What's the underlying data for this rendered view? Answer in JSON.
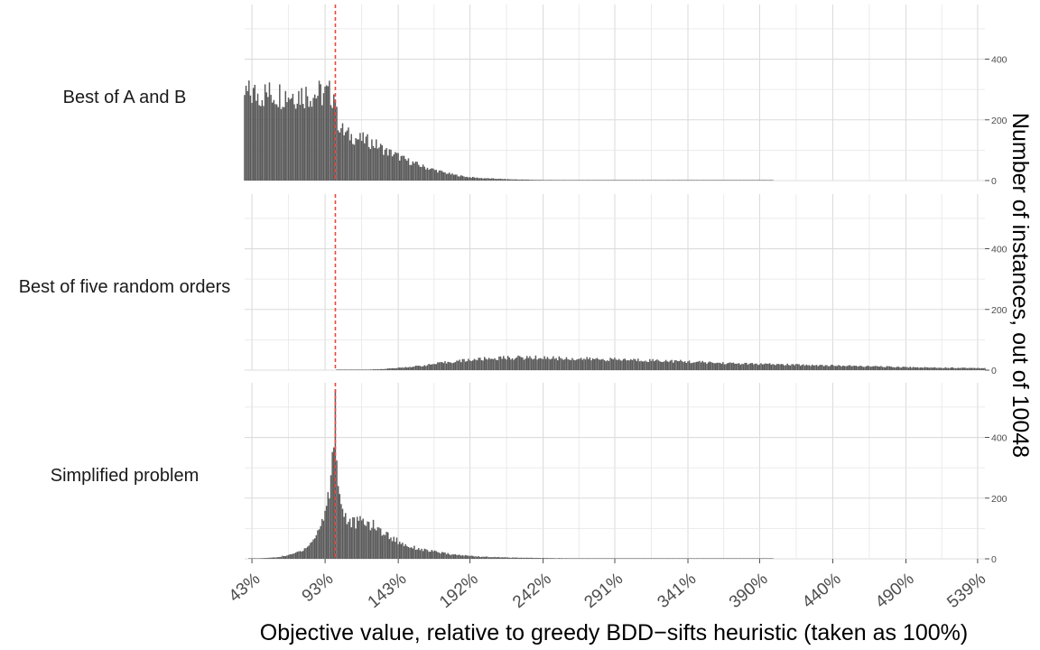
{
  "chart_data": {
    "type": "bar",
    "subtype": "faceted-histogram",
    "xlabel": "Objective value, relative to greedy BDD−sifts heuristic (taken as 100%)",
    "ylabel": "Number of instances, out of 10048",
    "x_ticks": [
      "43%",
      "93%",
      "143%",
      "192%",
      "242%",
      "291%",
      "341%",
      "390%",
      "440%",
      "490%",
      "539%"
    ],
    "x_tick_values": [
      43,
      93,
      143,
      192,
      242,
      291,
      341,
      390,
      440,
      490,
      539
    ],
    "xlim": [
      38,
      544
    ],
    "y_ticks": [
      "0",
      "200",
      "400"
    ],
    "y_tick_values": [
      0,
      200,
      400
    ],
    "ylim": [
      0,
      580
    ],
    "grid": true,
    "reference_line": {
      "x": 100,
      "color": "#e8493a",
      "style": "dashed"
    },
    "bin_width": 1,
    "facets": [
      {
        "label": "Best of A and B",
        "series": [
          {
            "x": 100,
            "y": 285
          },
          {
            "x": 101,
            "y": 210
          },
          {
            "x": 103,
            "y": 180
          },
          {
            "x": 106,
            "y": 158
          },
          {
            "x": 110,
            "y": 148
          },
          {
            "x": 115,
            "y": 138
          },
          {
            "x": 120,
            "y": 134
          },
          {
            "x": 125,
            "y": 125
          },
          {
            "x": 130,
            "y": 112
          },
          {
            "x": 135,
            "y": 96
          },
          {
            "x": 140,
            "y": 88
          },
          {
            "x": 145,
            "y": 75
          },
          {
            "x": 150,
            "y": 64
          },
          {
            "x": 160,
            "y": 46
          },
          {
            "x": 170,
            "y": 32
          },
          {
            "x": 180,
            "y": 20
          },
          {
            "x": 190,
            "y": 12
          },
          {
            "x": 200,
            "y": 8
          },
          {
            "x": 220,
            "y": 4
          },
          {
            "x": 240,
            "y": 2
          },
          {
            "x": 270,
            "y": 1
          },
          {
            "x": 320,
            "y": 0.5
          },
          {
            "x": 400,
            "y": 0
          }
        ]
      },
      {
        "label": "Best of five random orders",
        "series": [
          {
            "x": 100,
            "y": 0
          },
          {
            "x": 115,
            "y": 1
          },
          {
            "x": 130,
            "y": 3
          },
          {
            "x": 145,
            "y": 8
          },
          {
            "x": 160,
            "y": 15
          },
          {
            "x": 175,
            "y": 25
          },
          {
            "x": 190,
            "y": 33
          },
          {
            "x": 205,
            "y": 38
          },
          {
            "x": 220,
            "y": 41
          },
          {
            "x": 240,
            "y": 41
          },
          {
            "x": 260,
            "y": 38
          },
          {
            "x": 280,
            "y": 36
          },
          {
            "x": 300,
            "y": 34
          },
          {
            "x": 320,
            "y": 32
          },
          {
            "x": 340,
            "y": 28
          },
          {
            "x": 360,
            "y": 24
          },
          {
            "x": 380,
            "y": 21
          },
          {
            "x": 400,
            "y": 19
          },
          {
            "x": 420,
            "y": 17
          },
          {
            "x": 440,
            "y": 15
          },
          {
            "x": 460,
            "y": 13
          },
          {
            "x": 480,
            "y": 11
          },
          {
            "x": 500,
            "y": 9
          },
          {
            "x": 520,
            "y": 8
          },
          {
            "x": 539,
            "y": 7
          }
        ]
      },
      {
        "label": "Simplified problem",
        "series": [
          {
            "x": 40,
            "y": 0
          },
          {
            "x": 50,
            "y": 2
          },
          {
            "x": 60,
            "y": 5
          },
          {
            "x": 70,
            "y": 14
          },
          {
            "x": 78,
            "y": 30
          },
          {
            "x": 85,
            "y": 60
          },
          {
            "x": 90,
            "y": 110
          },
          {
            "x": 94,
            "y": 170
          },
          {
            "x": 97,
            "y": 260
          },
          {
            "x": 99,
            "y": 420
          },
          {
            "x": 100,
            "y": 560
          },
          {
            "x": 101,
            "y": 340
          },
          {
            "x": 103,
            "y": 200
          },
          {
            "x": 106,
            "y": 150
          },
          {
            "x": 110,
            "y": 118
          },
          {
            "x": 115,
            "y": 120
          },
          {
            "x": 120,
            "y": 122
          },
          {
            "x": 125,
            "y": 112
          },
          {
            "x": 130,
            "y": 96
          },
          {
            "x": 135,
            "y": 80
          },
          {
            "x": 140,
            "y": 66
          },
          {
            "x": 145,
            "y": 52
          },
          {
            "x": 150,
            "y": 42
          },
          {
            "x": 160,
            "y": 30
          },
          {
            "x": 170,
            "y": 22
          },
          {
            "x": 180,
            "y": 14
          },
          {
            "x": 200,
            "y": 7
          },
          {
            "x": 220,
            "y": 4
          },
          {
            "x": 250,
            "y": 2
          },
          {
            "x": 300,
            "y": 1
          },
          {
            "x": 400,
            "y": 0
          }
        ]
      }
    ]
  }
}
